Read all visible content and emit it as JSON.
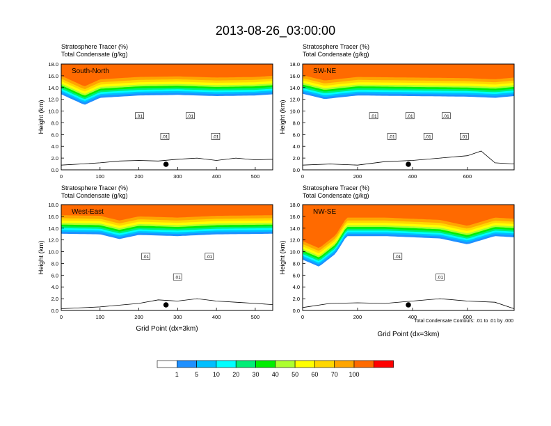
{
  "figure": {
    "title": "2013-08-26_03:00:00",
    "colorbar": {
      "labels": [
        "1",
        "5",
        "10",
        "20",
        "30",
        "40",
        "50",
        "60",
        "70",
        "100"
      ],
      "colors": [
        "#ffffff",
        "#1e90ff",
        "#00bfff",
        "#00ffff",
        "#00ee76",
        "#00ee00",
        "#adff2f",
        "#ffff00",
        "#ffd700",
        "#ffa500",
        "#ff6a00",
        "#ff0000"
      ]
    },
    "contour_note": "Total Condensate Contours: .01 to .01 by .000"
  },
  "chart_data": [
    {
      "type": "heatmap",
      "panel_label": "South-North",
      "header_line1": "Stratosphere Tracer   (%)",
      "header_line2": "Total Condensate   (g/kg)",
      "xlabel": "",
      "ylabel": "Height (km)",
      "xlim": [
        0,
        545
      ],
      "ylim": [
        0,
        18
      ],
      "xticks": [
        0,
        100,
        200,
        300,
        400,
        500
      ],
      "yticks": [
        0.0,
        2.0,
        4.0,
        6.0,
        8.0,
        10.0,
        12.0,
        14.0,
        16.0,
        18.0
      ],
      "ytick_labels": [
        "0.0",
        "2.0",
        "4.0",
        "6.0",
        "8.0",
        "10.0",
        "12.0",
        "14.0",
        "16.0",
        "18.0"
      ],
      "tropopause_profile": [
        [
          0,
          13.2
        ],
        [
          60,
          11.4
        ],
        [
          100,
          12.6
        ],
        [
          200,
          13.0
        ],
        [
          300,
          13.1
        ],
        [
          400,
          12.9
        ],
        [
          500,
          13.0
        ],
        [
          545,
          13.2
        ]
      ],
      "terrain_profile": [
        [
          0,
          0.8
        ],
        [
          50,
          1.0
        ],
        [
          100,
          1.2
        ],
        [
          150,
          1.5
        ],
        [
          200,
          1.6
        ],
        [
          250,
          1.5
        ],
        [
          300,
          1.8
        ],
        [
          350,
          2.0
        ],
        [
          400,
          1.6
        ],
        [
          450,
          2.0
        ],
        [
          500,
          1.7
        ],
        [
          545,
          1.8
        ]
      ],
      "contour_labels": [
        ".01",
        ".01",
        ".01",
        ".01"
      ],
      "marker_x": 270
    },
    {
      "type": "heatmap",
      "panel_label": "SW-NE",
      "header_line1": "Stratosphere Tracer   (%)",
      "header_line2": "Total Condensate   (g/kg)",
      "xlabel": "",
      "ylabel": "Height (km)",
      "xlim": [
        0,
        770
      ],
      "ylim": [
        0,
        18
      ],
      "xticks": [
        0,
        200,
        400,
        600
      ],
      "yticks": [
        0.0,
        2.0,
        4.0,
        6.0,
        8.0,
        10.0,
        12.0,
        14.0,
        16.0,
        18.0
      ],
      "ytick_labels": [
        "0.0",
        "2.0",
        "4.0",
        "6.0",
        "8.0",
        "10.0",
        "12.0",
        "14.0",
        "16.0",
        "18.0"
      ],
      "tropopause_profile": [
        [
          0,
          13.3
        ],
        [
          80,
          12.4
        ],
        [
          200,
          13.0
        ],
        [
          400,
          12.9
        ],
        [
          600,
          12.8
        ],
        [
          700,
          12.6
        ],
        [
          770,
          12.9
        ]
      ],
      "terrain_profile": [
        [
          0,
          0.8
        ],
        [
          100,
          1.0
        ],
        [
          200,
          0.8
        ],
        [
          300,
          1.4
        ],
        [
          400,
          1.6
        ],
        [
          500,
          2.0
        ],
        [
          600,
          2.4
        ],
        [
          650,
          3.2
        ],
        [
          700,
          1.2
        ],
        [
          770,
          1.0
        ]
      ],
      "contour_labels": [
        ".01",
        ".01",
        ".01",
        ".01",
        ".01",
        ".01"
      ],
      "marker_x": 385
    },
    {
      "type": "heatmap",
      "panel_label": "West-East",
      "header_line1": "Stratosphere Tracer   (%)",
      "header_line2": "Total Condensate   (g/kg)",
      "xlabel": "Grid Point (dx=3km)",
      "ylabel": "Height (km)",
      "xlim": [
        0,
        545
      ],
      "ylim": [
        0,
        18
      ],
      "xticks": [
        0,
        100,
        200,
        300,
        400,
        500
      ],
      "yticks": [
        0.0,
        2.0,
        4.0,
        6.0,
        8.0,
        10.0,
        12.0,
        14.0,
        16.0,
        18.0
      ],
      "ytick_labels": [
        "0.0",
        "2.0",
        "4.0",
        "6.0",
        "8.0",
        "10.0",
        "12.0",
        "14.0",
        "16.0",
        "18.0"
      ],
      "tropopause_profile": [
        [
          0,
          13.4
        ],
        [
          100,
          13.3
        ],
        [
          150,
          12.5
        ],
        [
          200,
          13.2
        ],
        [
          300,
          13.0
        ],
        [
          400,
          13.3
        ],
        [
          545,
          13.4
        ]
      ],
      "terrain_profile": [
        [
          0,
          0.3
        ],
        [
          100,
          0.6
        ],
        [
          200,
          1.2
        ],
        [
          250,
          1.8
        ],
        [
          300,
          1.6
        ],
        [
          350,
          2.0
        ],
        [
          400,
          1.6
        ],
        [
          450,
          1.4
        ],
        [
          500,
          1.2
        ],
        [
          545,
          1.0
        ]
      ],
      "contour_labels": [
        ".01",
        ".01",
        ".01"
      ],
      "marker_x": 270
    },
    {
      "type": "heatmap",
      "panel_label": "NW-SE",
      "header_line1": "Stratosphere Tracer   (%)",
      "header_line2": "Total Condensate   (g/kg)",
      "xlabel": "Grid Point (dx=3km)",
      "ylabel": "Height (km)",
      "xlim": [
        0,
        770
      ],
      "ylim": [
        0,
        18
      ],
      "xticks": [
        0,
        200,
        400,
        600
      ],
      "yticks": [
        0.0,
        2.0,
        4.0,
        6.0,
        8.0,
        10.0,
        12.0,
        14.0,
        16.0,
        18.0
      ],
      "ytick_labels": [
        "0.0",
        "2.0",
        "4.0",
        "6.0",
        "8.0",
        "10.0",
        "12.0",
        "14.0",
        "16.0",
        "18.0"
      ],
      "tropopause_profile": [
        [
          0,
          9.0
        ],
        [
          60,
          7.8
        ],
        [
          120,
          10.0
        ],
        [
          160,
          13.0
        ],
        [
          300,
          13.0
        ],
        [
          500,
          12.6
        ],
        [
          600,
          11.6
        ],
        [
          700,
          13.0
        ],
        [
          770,
          12.8
        ]
      ],
      "terrain_profile": [
        [
          0,
          0.5
        ],
        [
          100,
          1.2
        ],
        [
          200,
          1.3
        ],
        [
          300,
          1.2
        ],
        [
          400,
          1.6
        ],
        [
          500,
          2.0
        ],
        [
          600,
          1.6
        ],
        [
          700,
          1.4
        ],
        [
          770,
          0.3
        ]
      ],
      "contour_labels": [
        ".01",
        ".01"
      ],
      "marker_x": 385
    }
  ]
}
